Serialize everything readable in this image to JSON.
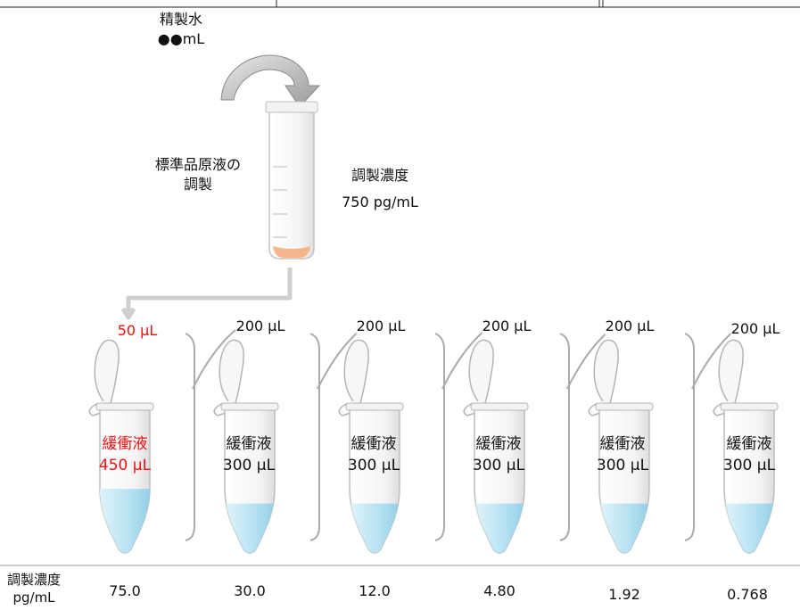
{
  "water": {
    "name": "精製水",
    "volume": "●●mL"
  },
  "stock": {
    "label_line1": "標準品原液の",
    "label_line2": "調製",
    "conc_title": "調製濃度",
    "conc_value": "750 pg/mL"
  },
  "tubes": [
    {
      "transfer": "50 μL",
      "buffer_name": "緩衝液",
      "buffer_volume": "450 μL",
      "concentration": "75.0",
      "fill": 0.45
    },
    {
      "transfer": "200 μL",
      "buffer_name": "緩衝液",
      "buffer_volume": "300 μL",
      "concentration": "30.0",
      "fill": 0.35
    },
    {
      "transfer": "200 μL",
      "buffer_name": "緩衝液",
      "buffer_volume": "300 μL",
      "concentration": "12.0",
      "fill": 0.35
    },
    {
      "transfer": "200 μL",
      "buffer_name": "緩衝液",
      "buffer_volume": "300 μL",
      "concentration": "4.80",
      "fill": 0.35
    },
    {
      "transfer": "200 μL",
      "buffer_name": "緩衝液",
      "buffer_volume": "300 μL",
      "concentration": "1.92",
      "fill": 0.35
    },
    {
      "transfer": "200 μL",
      "buffer_name": "緩衝液",
      "buffer_volume": "300 μL",
      "concentration": "0.768",
      "fill": 0.35
    }
  ],
  "footer": {
    "conc_label": "調製濃度",
    "unit": "pg/mL"
  },
  "colors": {
    "accent_red": "#ee1111",
    "liquid": "#a9dcef",
    "line": "#999999",
    "pellet": "#f5b48a"
  }
}
